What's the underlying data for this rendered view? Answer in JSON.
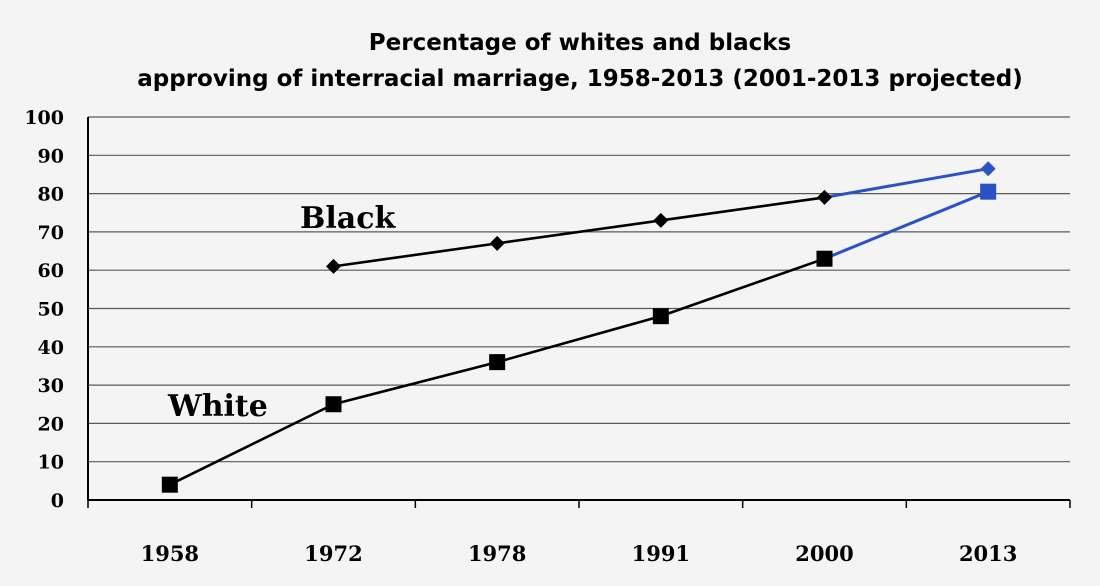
{
  "chart_data": {
    "type": "line",
    "title": "Percentage of whites and blacks",
    "subtitle": "approving of interracial marriage, 1958-2013 (2001-2013 projected)",
    "categories": [
      "1958",
      "1972",
      "1978",
      "1991",
      "2000",
      "2013"
    ],
    "ylim": [
      0,
      100
    ],
    "yticks": [
      0,
      10,
      20,
      30,
      40,
      50,
      60,
      70,
      80,
      90,
      100
    ],
    "grid": true,
    "series": [
      {
        "name": "Black",
        "marker": "diamond",
        "values": [
          null,
          61,
          67,
          73,
          79,
          86.5
        ],
        "projected_from_index": 4
      },
      {
        "name": "White",
        "marker": "square",
        "values": [
          4,
          25,
          36,
          48,
          63,
          80.5
        ],
        "projected_from_index": 4
      }
    ],
    "colors": {
      "observed": "#000000",
      "projected": "#2b52c4",
      "grid": "#5a5a5a"
    }
  }
}
